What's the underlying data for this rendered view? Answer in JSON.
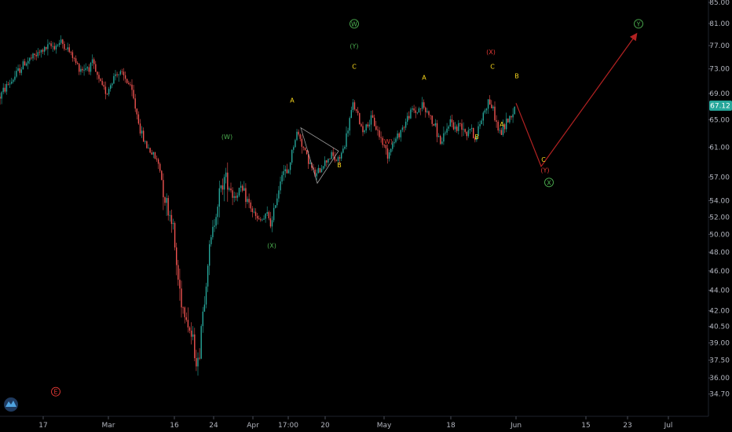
{
  "chart_data": {
    "type": "candlestick",
    "title": "",
    "xlabel": "",
    "ylabel": "",
    "scale": "log",
    "ylim": [
      34.0,
      85.0
    ],
    "y_ticks": [
      "85.00",
      "81.00",
      "77.00",
      "73.00",
      "69.00",
      "65.00",
      "61.00",
      "57.00",
      "54.00",
      "52.00",
      "50.00",
      "48.00",
      "46.00",
      "44.00",
      "42.00",
      "40.50",
      "39.00",
      "37.50",
      "36.00",
      "34.70"
    ],
    "x_ticks": [
      "17",
      "Mar",
      "16",
      "24",
      "Apr",
      "17:00",
      "20",
      "May",
      "18",
      "Jun",
      "15",
      "23",
      "Jul"
    ],
    "last_price": "67.12",
    "colors": {
      "up": "#26a69a",
      "down": "#ef5350",
      "projection": "#b22222",
      "triangle": "#9e9e9e",
      "price_badge": "#26a69a",
      "green_label": "#4caf50",
      "yellow_label": "#f9d71c",
      "red_label": "#e53935"
    },
    "price_path": [
      [
        0,
        68.5
      ],
      [
        8,
        70.2
      ],
      [
        15,
        71.0
      ],
      [
        22,
        72.4
      ],
      [
        30,
        73.8
      ],
      [
        38,
        74.6
      ],
      [
        46,
        75.3
      ],
      [
        55,
        76.2
      ],
      [
        63,
        76.8
      ],
      [
        70,
        77.0
      ],
      [
        78,
        77.6
      ],
      [
        85,
        76.5
      ],
      [
        92,
        75.2
      ],
      [
        98,
        73.6
      ],
      [
        105,
        73.0
      ],
      [
        112,
        73.4
      ],
      [
        118,
        73.8
      ],
      [
        124,
        71.5
      ],
      [
        130,
        70.0
      ],
      [
        136,
        69.2
      ],
      [
        142,
        70.8
      ],
      [
        148,
        72.5
      ],
      [
        154,
        72.0
      ],
      [
        160,
        71.3
      ],
      [
        166,
        70.0
      ],
      [
        171,
        67.5
      ],
      [
        175,
        65.5
      ],
      [
        179,
        63.2
      ],
      [
        183,
        62.0
      ],
      [
        188,
        61.0
      ],
      [
        193,
        60.2
      ],
      [
        198,
        59.5
      ],
      [
        203,
        58.5
      ],
      [
        207,
        56.0
      ],
      [
        211,
        54.0
      ],
      [
        215,
        52.5
      ],
      [
        219,
        52.0
      ],
      [
        222,
        49.0
      ],
      [
        226,
        45.5
      ],
      [
        230,
        43.5
      ],
      [
        234,
        42.0
      ],
      [
        238,
        41.5
      ],
      [
        242,
        40.0
      ],
      [
        246,
        39.0
      ],
      [
        250,
        37.5
      ],
      [
        253,
        37.0
      ],
      [
        256,
        40.5
      ],
      [
        260,
        43.0
      ],
      [
        264,
        46.5
      ],
      [
        268,
        49.0
      ],
      [
        272,
        51.0
      ],
      [
        276,
        53.5
      ],
      [
        280,
        55.0
      ],
      [
        284,
        56.5
      ],
      [
        288,
        57.0
      ],
      [
        292,
        56.0
      ],
      [
        296,
        55.0
      ],
      [
        300,
        54.5
      ],
      [
        305,
        55.5
      ],
      [
        310,
        55.0
      ],
      [
        315,
        54.0
      ],
      [
        320,
        53.0
      ],
      [
        325,
        52.0
      ],
      [
        330,
        51.5
      ],
      [
        336,
        51.8
      ],
      [
        341,
        52.3
      ],
      [
        346,
        51.0
      ],
      [
        350,
        53.5
      ],
      [
        354,
        55.0
      ],
      [
        358,
        57.5
      ],
      [
        362,
        58.0
      ],
      [
        366,
        57.0
      ],
      [
        370,
        59.5
      ],
      [
        374,
        61.5
      ],
      [
        378,
        63.0
      ],
      [
        382,
        62.5
      ],
      [
        386,
        61.0
      ],
      [
        390,
        60.0
      ],
      [
        394,
        59.0
      ],
      [
        398,
        57.8
      ],
      [
        402,
        57.0
      ],
      [
        406,
        57.8
      ],
      [
        410,
        58.5
      ],
      [
        414,
        59.0
      ],
      [
        418,
        59.6
      ],
      [
        422,
        60.0
      ],
      [
        426,
        59.4
      ],
      [
        430,
        59.0
      ],
      [
        434,
        60.0
      ],
      [
        438,
        61.0
      ],
      [
        442,
        63.0
      ],
      [
        446,
        65.5
      ],
      [
        450,
        67.5
      ],
      [
        454,
        66.0
      ],
      [
        458,
        64.5
      ],
      [
        462,
        63.5
      ],
      [
        466,
        64.0
      ],
      [
        470,
        64.5
      ],
      [
        474,
        65.0
      ],
      [
        478,
        64.0
      ],
      [
        482,
        63.0
      ],
      [
        486,
        62.0
      ],
      [
        490,
        61.0
      ],
      [
        494,
        60.0
      ],
      [
        498,
        61.2
      ],
      [
        502,
        61.8
      ],
      [
        506,
        62.5
      ],
      [
        510,
        63.5
      ],
      [
        514,
        64.0
      ],
      [
        518,
        65.0
      ],
      [
        522,
        66.0
      ],
      [
        526,
        66.5
      ],
      [
        530,
        66.0
      ],
      [
        534,
        66.8
      ],
      [
        538,
        67.2
      ],
      [
        542,
        66.2
      ],
      [
        546,
        66.0
      ],
      [
        550,
        64.5
      ],
      [
        554,
        64.0
      ],
      [
        558,
        62.5
      ],
      [
        562,
        61.5
      ],
      [
        566,
        62.5
      ],
      [
        570,
        64.0
      ],
      [
        574,
        65.0
      ],
      [
        578,
        64.0
      ],
      [
        582,
        63.5
      ],
      [
        586,
        64.5
      ],
      [
        590,
        64.0
      ],
      [
        594,
        63.0
      ],
      [
        598,
        64.0
      ],
      [
        602,
        63.0
      ],
      [
        606,
        62.0
      ],
      [
        610,
        64.0
      ],
      [
        614,
        65.5
      ],
      [
        618,
        66.8
      ],
      [
        622,
        68.0
      ],
      [
        626,
        67.0
      ],
      [
        630,
        65.5
      ],
      [
        634,
        63.5
      ],
      [
        638,
        63.0
      ],
      [
        642,
        64.0
      ],
      [
        646,
        65.0
      ],
      [
        650,
        65.5
      ],
      [
        654,
        66.5
      ],
      [
        657,
        67.12
      ]
    ],
    "projection": [
      [
        657,
        67.5
      ],
      [
        689,
        58.4
      ],
      [
        810,
        79.0
      ]
    ],
    "triangle": [
      [
        383,
        63.8
      ],
      [
        431,
        60.5
      ],
      [
        404,
        56.2
      ]
    ],
    "wave_labels": [
      {
        "text": "W",
        "x": 451,
        "y": 80.5,
        "color": "#4caf50",
        "circled": true
      },
      {
        "text": "(Y)",
        "x": 451,
        "y": 76.5,
        "color": "#4caf50",
        "circled": false
      },
      {
        "text": "C",
        "x": 451,
        "y": 73.0,
        "color": "#f9d71c",
        "circled": false
      },
      {
        "text": "(W)",
        "x": 289,
        "y": 62.2,
        "color": "#4caf50",
        "circled": false
      },
      {
        "text": "(X)",
        "x": 346,
        "y": 48.5,
        "color": "#4caf50",
        "circled": false
      },
      {
        "text": "A",
        "x": 372,
        "y": 67.6,
        "color": "#f9d71c",
        "circled": false
      },
      {
        "text": "B",
        "x": 432,
        "y": 58.3,
        "color": "#f9d71c",
        "circled": false
      },
      {
        "text": "(W)",
        "x": 493,
        "y": 61.5,
        "color": "#e53935",
        "circled": false
      },
      {
        "text": "A",
        "x": 540,
        "y": 71.2,
        "color": "#f9d71c",
        "circled": false
      },
      {
        "text": "B",
        "x": 607,
        "y": 62.2,
        "color": "#f9d71c",
        "circled": false
      },
      {
        "text": "(X)",
        "x": 625,
        "y": 75.5,
        "color": "#e53935",
        "circled": false
      },
      {
        "text": "C",
        "x": 627,
        "y": 73.0,
        "color": "#f9d71c",
        "circled": false
      },
      {
        "text": "A",
        "x": 639,
        "y": 64.0,
        "color": "#f9d71c",
        "circled": false
      },
      {
        "text": "B",
        "x": 658,
        "y": 71.5,
        "color": "#f9d71c",
        "circled": false
      },
      {
        "text": "C",
        "x": 692,
        "y": 59.0,
        "color": "#f9d71c",
        "circled": false
      },
      {
        "text": "(Y)",
        "x": 694,
        "y": 57.6,
        "color": "#e53935",
        "circled": false
      },
      {
        "text": "X",
        "x": 699,
        "y": 56.0,
        "color": "#4caf50",
        "circled": true
      },
      {
        "text": "Y",
        "x": 813,
        "y": 80.5,
        "color": "#4caf50",
        "circled": true
      },
      {
        "text": "E",
        "x": 71,
        "y": 34.7,
        "color": "#e53935",
        "circled": true
      }
    ]
  }
}
